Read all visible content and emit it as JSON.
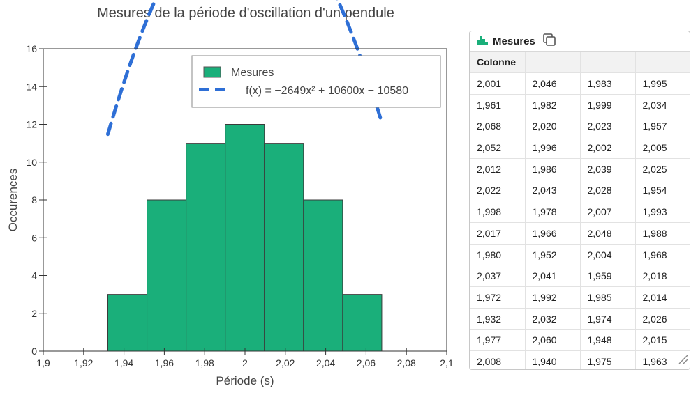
{
  "chart_data": {
    "type": "bar",
    "title": "Mesures de la période d'oscillation d'un pendule",
    "xlabel": "Période (s)",
    "ylabel": "Occurences",
    "xlim": [
      1.9,
      2.1
    ],
    "ylim": [
      0,
      16
    ],
    "x_ticks": [
      1.9,
      1.92,
      1.94,
      1.96,
      1.98,
      2.0,
      2.02,
      2.04,
      2.06,
      2.08,
      2.1
    ],
    "x_tick_labels": [
      "1,9",
      "1,92",
      "1,94",
      "1,96",
      "1,98",
      "2",
      "2,02",
      "2,04",
      "2,06",
      "2,08",
      "2,1"
    ],
    "y_ticks": [
      0,
      2,
      4,
      6,
      8,
      10,
      12,
      14,
      16
    ],
    "y_tick_labels": [
      "0",
      "2",
      "4",
      "6",
      "8",
      "10",
      "12",
      "14",
      "16"
    ],
    "bins": [
      {
        "start": 1.932,
        "end": 1.9514,
        "value": 3
      },
      {
        "start": 1.9514,
        "end": 1.9708,
        "value": 8
      },
      {
        "start": 1.9708,
        "end": 1.9902,
        "value": 11
      },
      {
        "start": 1.9902,
        "end": 2.0096,
        "value": 12
      },
      {
        "start": 2.0096,
        "end": 2.029,
        "value": 11
      },
      {
        "start": 2.029,
        "end": 2.0484,
        "value": 8
      },
      {
        "start": 2.0484,
        "end": 2.0678,
        "value": 3
      }
    ],
    "bar_color": "#1aaf7a",
    "curve": {
      "name": "f(x) = −2649x² + 10600x − 10580",
      "a": -2649,
      "b": 10600,
      "c": -10580,
      "x_range": [
        1.932,
        2.068
      ],
      "color": "#2e6fd6"
    },
    "legend": {
      "position": "top-right",
      "entries": [
        "Mesures",
        "f(x) = −2649x² + 10600x − 10580"
      ]
    },
    "grid": false
  },
  "table": {
    "title": "Mesures",
    "header": [
      "Colonne",
      "",
      "",
      ""
    ],
    "rows": [
      [
        "2,001",
        "2,046",
        "1,983",
        "1,995"
      ],
      [
        "1,961",
        "1,982",
        "1,999",
        "2,034"
      ],
      [
        "2,068",
        "2,020",
        "2,023",
        "1,957"
      ],
      [
        "2,052",
        "1,996",
        "2,002",
        "2,005"
      ],
      [
        "2,012",
        "1,986",
        "2,039",
        "2,025"
      ],
      [
        "2,022",
        "2,043",
        "2,028",
        "1,954"
      ],
      [
        "1,998",
        "1,978",
        "2,007",
        "1,993"
      ],
      [
        "2,017",
        "1,966",
        "2,048",
        "1,988"
      ],
      [
        "1,980",
        "1,952",
        "2,004",
        "1,968"
      ],
      [
        "2,037",
        "2,041",
        "1,959",
        "2,018"
      ],
      [
        "1,972",
        "1,992",
        "1,985",
        "2,014"
      ],
      [
        "1,932",
        "2,032",
        "1,974",
        "2,026"
      ],
      [
        "1,977",
        "2,060",
        "1,948",
        "2,015"
      ],
      [
        "2,008",
        "1,940",
        "1,975",
        "1,963"
      ]
    ]
  },
  "icons": {
    "table_icon": "bar-chart-icon",
    "copy_icon": "copy-icon",
    "resize_icon": "resize-handle-icon"
  }
}
